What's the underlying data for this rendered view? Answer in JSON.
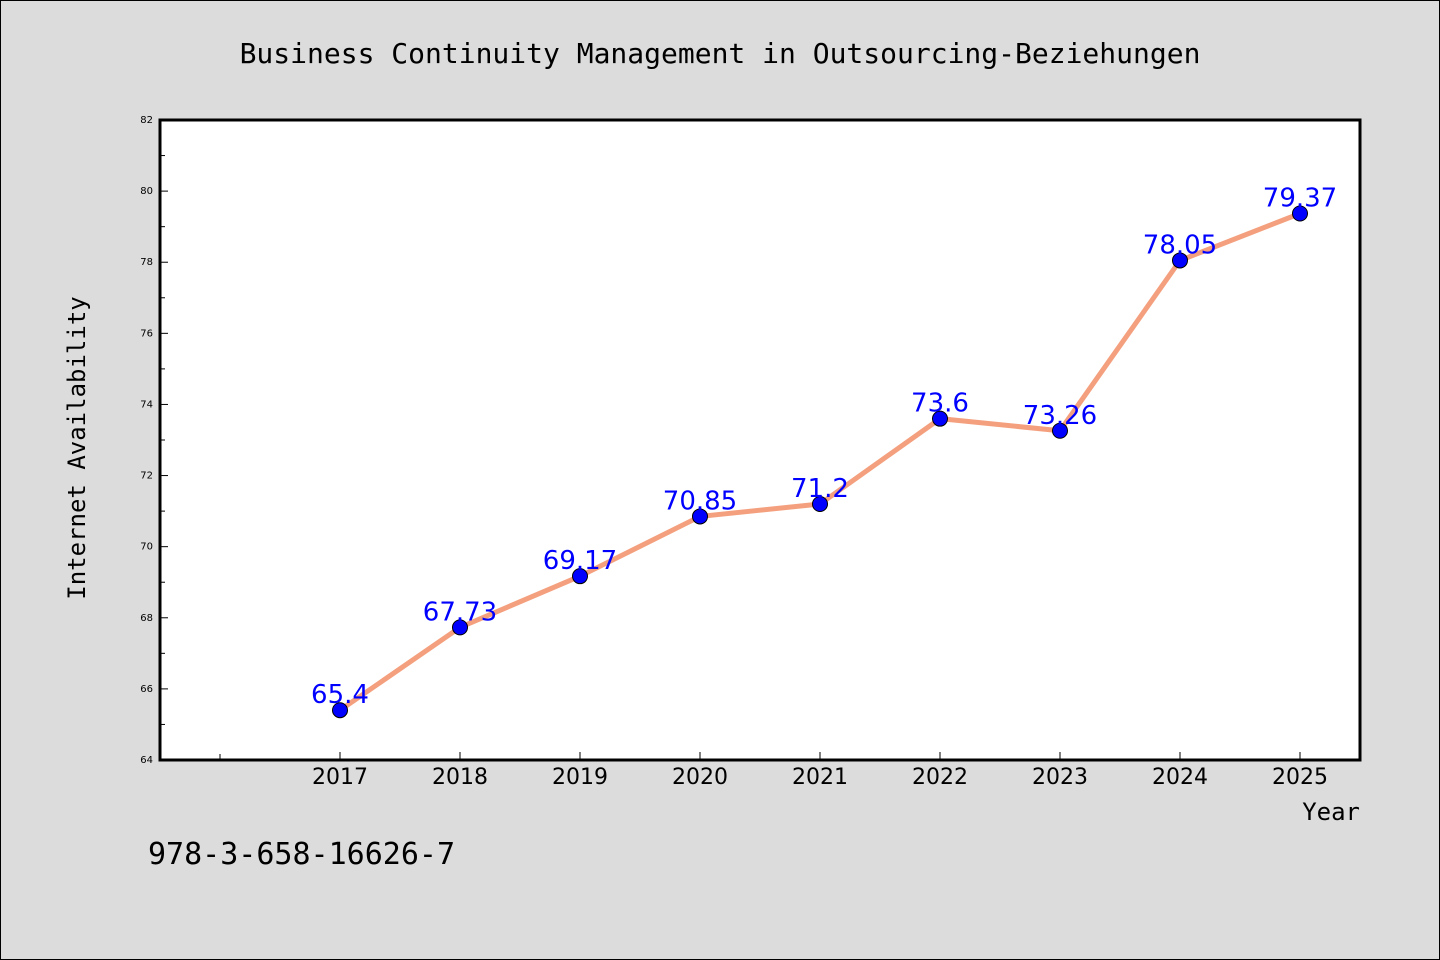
{
  "chart_data": {
    "type": "line",
    "title": "Business Continuity Management in Outsourcing-Beziehungen",
    "xlabel": "Year",
    "ylabel": "Internet Availability",
    "categories": [
      "2017",
      "2018",
      "2019",
      "2020",
      "2021",
      "2022",
      "2023",
      "2024",
      "2025"
    ],
    "series": [
      {
        "values": [
          65.4,
          67.73,
          69.17,
          70.85,
          71.2,
          73.6,
          73.26,
          78.05,
          79.37
        ],
        "data_labels": [
          "65.4",
          "67.73",
          "69.17",
          "70.85",
          "71.2",
          "73.6",
          "73.26",
          "78.05",
          "79.37"
        ]
      }
    ],
    "ylim": [
      64,
      82
    ],
    "yticks": [
      "64",
      "66",
      "68",
      "70",
      "72",
      "74",
      "76",
      "78",
      "80",
      "82"
    ],
    "grid": false,
    "line_color": "#f4a07e",
    "marker_color": "#0000ff",
    "label_color": "#0000ff"
  },
  "footer": {
    "isbn": "978-3-658-16626-7"
  }
}
